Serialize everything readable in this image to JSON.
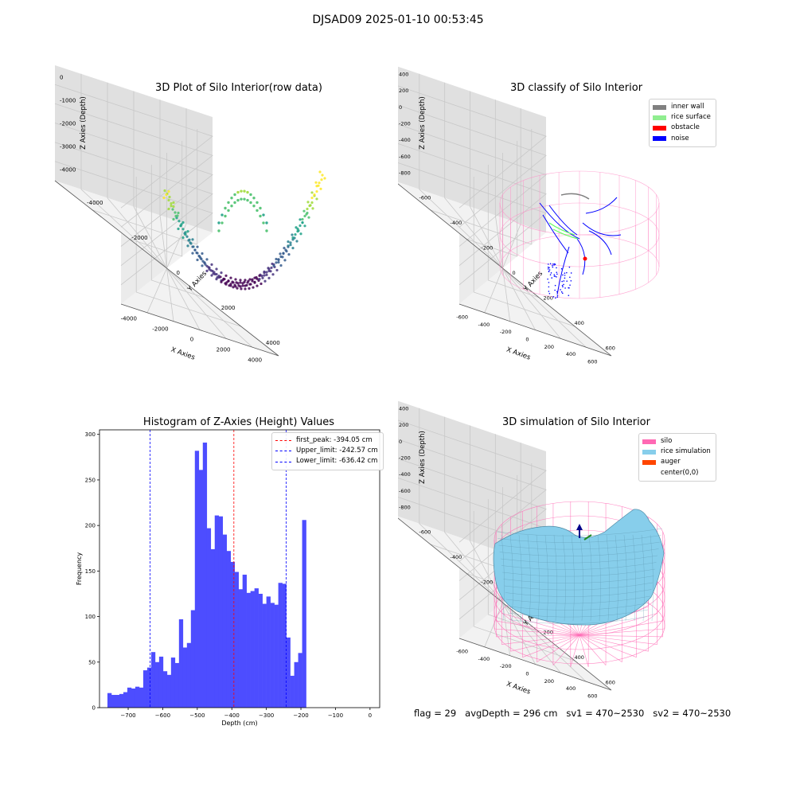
{
  "figure": {
    "suptitle": "DJSAD09 2025-01-10 00:53:45",
    "footer": {
      "flag": "flag = 29",
      "avg_depth": "avgDepth = 296 cm",
      "sv1": "sv1 = 470~2530",
      "sv2": "sv2 = 470~2530"
    }
  },
  "chart_data": [
    {
      "type": "scatter",
      "title": "3D Plot of Silo Interior(row data)",
      "xlabel": "X Axies",
      "ylabel": "Y Axies",
      "zlabel": "Z Axies (Depth)",
      "x_ticks": [
        "-4000",
        "-2000",
        "0",
        "2000",
        "4000"
      ],
      "y_ticks": [
        "-4000",
        "-2000",
        "0",
        "2000",
        "4000"
      ],
      "z_ticks": [
        "0",
        "-1000",
        "-2000",
        "-3000",
        "-4000"
      ],
      "xlim": [
        -4500,
        4500
      ],
      "ylim": [
        -4500,
        4500
      ],
      "zlim": [
        -4700,
        300
      ],
      "colormap": "viridis",
      "grid": true
    },
    {
      "type": "scatter",
      "title": "3D classify of Silo Interior",
      "xlabel": "X Axies",
      "ylabel": "Y Axies",
      "zlabel": "Z Axies (Depth)",
      "x_ticks": [
        "-600",
        "-400",
        "-200",
        "0",
        "200",
        "400",
        "600"
      ],
      "y_ticks": [
        "-600",
        "-400",
        "-200",
        "0",
        "200",
        "400",
        "600"
      ],
      "z_ticks": [
        "400",
        "200",
        "0",
        "-200",
        "-400",
        "-600",
        "-800"
      ],
      "xlim": [
        -700,
        700
      ],
      "ylim": [
        -700,
        700
      ],
      "zlim": [
        -950,
        450
      ],
      "grid": true,
      "legend_position": "top-right",
      "legend": [
        {
          "label": "inner wall",
          "color": "#808080"
        },
        {
          "label": "rice surface",
          "color": "#90ee90"
        },
        {
          "label": "obstacle",
          "color": "#ff0000"
        },
        {
          "label": "noise",
          "color": "#0000ff"
        }
      ]
    },
    {
      "type": "bar",
      "title": "Histogram of Z-Axies (Height) Values",
      "xlabel": "Depth (cm)",
      "ylabel": "Frequency",
      "bin_start": -760,
      "bin_width": 11.5,
      "values": [
        16,
        14,
        14,
        15,
        17,
        22,
        21,
        23,
        22,
        41,
        44,
        61,
        50,
        56,
        40,
        36,
        55,
        49,
        97,
        66,
        71,
        107,
        282,
        261,
        291,
        197,
        174,
        211,
        210,
        190,
        172,
        160,
        149,
        130,
        146,
        126,
        128,
        131,
        125,
        114,
        122,
        115,
        113,
        137,
        136,
        77,
        35,
        50,
        60,
        206
      ],
      "xlim": [
        -783,
        28
      ],
      "ylim": [
        0,
        305
      ],
      "x_ticks": [
        -700,
        -600,
        -500,
        -400,
        -300,
        -200,
        -100,
        0
      ],
      "y_ticks": [
        0,
        50,
        100,
        150,
        200,
        250,
        300
      ],
      "bar_color": "#4d4dff",
      "lines": [
        {
          "label": "first_peak: -394.05 cm",
          "x": -394.05,
          "color": "#ff0000"
        },
        {
          "label": "Upper_limit: -242.57 cm",
          "x": -242.57,
          "color": "#0000ff"
        },
        {
          "label": "Lower_limit: -636.42 cm",
          "x": -636.42,
          "color": "#0000ff"
        }
      ],
      "legend_position": "top-right"
    },
    {
      "type": "surface",
      "title": "3D simulation of Silo Interior",
      "xlabel": "X Axies",
      "ylabel": "Y Axies",
      "zlabel": "Z Axies (Depth)",
      "x_ticks": [
        "-600",
        "-400",
        "-200",
        "0",
        "200",
        "400",
        "600"
      ],
      "y_ticks": [
        "-600",
        "-400",
        "-200",
        "0",
        "200",
        "400",
        "600"
      ],
      "z_ticks": [
        "400",
        "200",
        "0",
        "-200",
        "-400",
        "-600",
        "-800"
      ],
      "xlim": [
        -700,
        700
      ],
      "ylim": [
        -700,
        700
      ],
      "zlim": [
        -950,
        450
      ],
      "grid": true,
      "legend_position": "top-right",
      "legend": [
        {
          "label": "silo",
          "color": "#ff69b4"
        },
        {
          "label": "rice simulation",
          "color": "#87ceeb"
        },
        {
          "label": "auger",
          "color": "#ff4500"
        },
        {
          "label": "center(0,0)",
          "color": ""
        }
      ]
    }
  ]
}
